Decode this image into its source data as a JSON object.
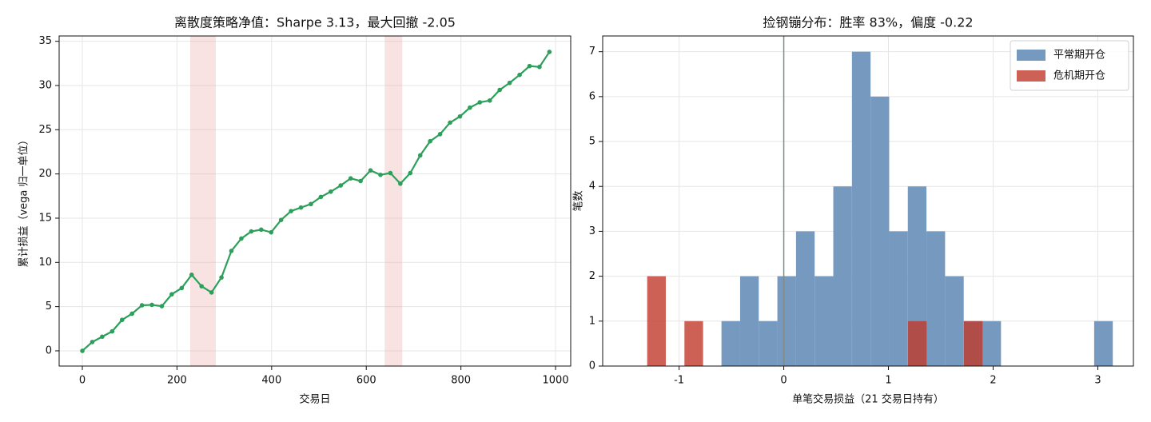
{
  "chart_data": [
    {
      "type": "line",
      "title": "离散度策略净值：Sharpe 3.13，最大回撤 -2.05",
      "xlabel": "交易日",
      "ylabel": "累计损益（vega 归一单位）",
      "x": [
        0,
        21,
        42,
        63,
        84,
        105,
        126,
        147,
        168,
        189,
        210,
        231,
        252,
        273,
        294,
        315,
        336,
        357,
        378,
        399,
        420,
        441,
        462,
        483,
        504,
        525,
        546,
        567,
        588,
        609,
        630,
        651,
        672,
        693,
        714,
        735,
        756,
        777,
        798,
        819,
        840,
        861,
        882,
        903,
        924,
        945,
        966,
        987
      ],
      "series": [
        {
          "name": "净值",
          "color": "#2ca05a",
          "values": [
            0,
            1.0,
            1.6,
            2.2,
            3.5,
            4.2,
            5.15,
            5.2,
            5.05,
            6.4,
            7.1,
            8.6,
            7.3,
            6.6,
            8.3,
            11.3,
            12.7,
            13.5,
            13.7,
            13.4,
            14.8,
            15.8,
            16.2,
            16.6,
            17.4,
            18.0,
            18.7,
            19.5,
            19.2,
            20.4,
            19.9,
            20.1,
            18.9,
            20.1,
            22.1,
            23.7,
            24.5,
            25.8,
            26.5,
            27.5,
            28.1,
            28.3,
            29.5,
            30.3,
            31.2,
            32.2,
            32.1,
            33.8
          ]
        }
      ],
      "shaded": [
        [
          228,
          282
        ],
        [
          639,
          676
        ]
      ],
      "shade_color": "#e8a0a0",
      "xlim": [
        -49,
        1032
      ],
      "ylim": [
        -1.72,
        35.6
      ],
      "xticks": [
        0,
        200,
        400,
        600,
        800,
        1000
      ],
      "yticks": [
        0,
        5,
        10,
        15,
        20,
        25,
        30,
        35
      ],
      "grid": true
    },
    {
      "type": "histogram",
      "title": "捡钢镚分布：胜率 83%，偏度 -0.22",
      "xlabel": "单笔交易损益（21 交易日持有）",
      "ylabel": "笔数",
      "series": [
        {
          "name": "平常期开仓",
          "color": "#7699bf",
          "bins": [
            -0.595,
            -0.417,
            -0.239,
            -0.061,
            0.117,
            0.295,
            0.473,
            0.651,
            0.829,
            1.007,
            1.185,
            1.363,
            1.541,
            1.719,
            1.897,
            2.075,
            2.253,
            2.431,
            2.609,
            2.787,
            2.965,
            3.143
          ],
          "values": [
            1,
            2,
            1,
            2,
            3,
            2,
            4,
            7,
            6,
            3,
            4,
            3,
            2,
            1,
            1,
            0,
            0,
            0,
            0,
            0,
            1
          ]
        },
        {
          "name": "危机期开仓",
          "color": "#c0392b",
          "bins": [
            -1.305,
            -1.127,
            -0.949,
            -0.771,
            -0.593,
            -0.415,
            -0.237,
            -0.059,
            0.119,
            0.297,
            0.475,
            0.653,
            0.831,
            1.009,
            1.187,
            1.365,
            1.543,
            1.721,
            1.899
          ],
          "values": [
            2,
            0,
            1,
            0,
            0,
            0,
            0,
            0,
            0,
            0,
            0,
            0,
            0,
            0,
            1,
            0,
            0,
            1
          ]
        }
      ],
      "vline": 0,
      "vline_color": "#808a88",
      "xlim": [
        -1.73,
        3.34
      ],
      "ylim": [
        0,
        7.35
      ],
      "xticks": [
        -1,
        0,
        1,
        2,
        3
      ],
      "yticks": [
        0,
        1,
        2,
        3,
        4,
        5,
        6,
        7
      ],
      "grid": true,
      "legend": "upper right"
    }
  ]
}
